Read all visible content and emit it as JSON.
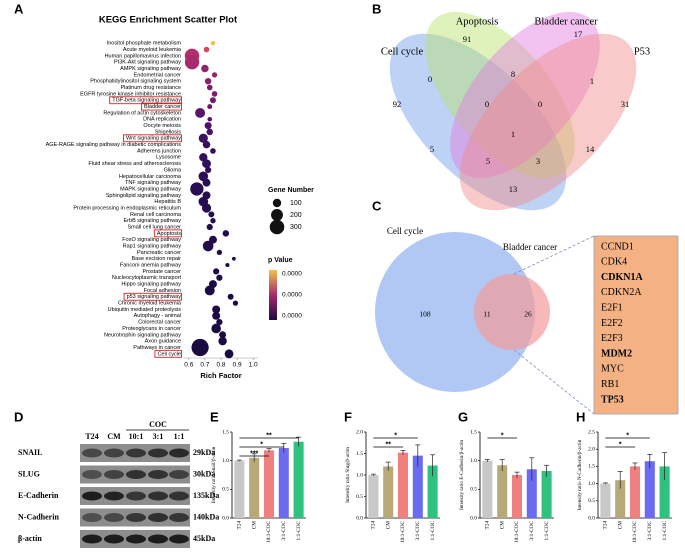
{
  "chart_data": [
    {
      "type": "scatter",
      "panel": "A",
      "title": "KEGG Enrichment Scatter Plot",
      "x_label": "Rich Factor",
      "categories": [
        "Inositol phosphate metabolism",
        "Acute myeloid leukemia",
        "Human papillomavirus infection",
        "PI3K-Akt signaling pathway",
        "AMPK signaling pathway",
        "Endometrial cancer",
        "Phosphatidylinositol signaling system",
        "Platinum drug resistance",
        "EGFR tyrosine kinase inhibitor resistance",
        "TGF-beta signaling pathway",
        "Bladder cancer",
        "Regulation of actin cytoskeleton",
        "DNA replication",
        "Oocyte meiosis",
        "Shigellosis",
        "Wnt signaling pathway",
        "AGE-RAGE signaling pathway in diabetic complications",
        "Adherens junction",
        "Lysosome",
        "Fluid shear stress and atherosclerosis",
        "Glioma",
        "Hepatocellular carcinoma",
        "TNF signaling pathway",
        "MAPK signaling pathway",
        "Sphingolipid signaling pathway",
        "Hepatitis B",
        "Protein processing in endoplasmic reticulum",
        "Renal cell carcinoma",
        "ErbB signaling pathway",
        "Small cell lung cancer",
        "Apoptosis",
        "FoxO signaling pathway",
        "Rap1 signaling pathway",
        "Pancreatic cancer",
        "Base excision repair",
        "Fanconi anemia pathway",
        "Prostate cancer",
        "Nucleocytoplasmic transport",
        "Hippo signaling pathway",
        "Focal adhesion",
        "p53 signaling pathway",
        "Chronic myeloid leukemia",
        "Ubiquitin mediated proteolysis",
        "Autophagy - animal",
        "Colorectal cancer",
        "Proteoglycans in cancer",
        "Neurotrophin signaling pathway",
        "Axon guidance",
        "Pathways in cancer",
        "Cell cycle"
      ],
      "values": [
        0.75,
        0.71,
        0.62,
        0.62,
        0.7,
        0.76,
        0.72,
        0.73,
        0.76,
        0.75,
        0.73,
        0.67,
        0.73,
        0.72,
        0.73,
        0.69,
        0.71,
        0.75,
        0.69,
        0.71,
        0.72,
        0.69,
        0.71,
        0.65,
        0.71,
        0.69,
        0.71,
        0.74,
        0.75,
        0.73,
        0.83,
        0.75,
        0.72,
        0.79,
        0.88,
        0.84,
        0.77,
        0.79,
        0.75,
        0.73,
        0.86,
        0.89,
        0.77,
        0.77,
        0.79,
        0.77,
        0.81,
        0.81,
        0.67,
        0.85
      ],
      "sizes": [
        30,
        45,
        300,
        290,
        80,
        40,
        60,
        45,
        45,
        50,
        35,
        140,
        30,
        70,
        60,
        120,
        80,
        45,
        100,
        110,
        55,
        130,
        90,
        250,
        90,
        130,
        120,
        50,
        40,
        55,
        60,
        90,
        160,
        40,
        20,
        25,
        55,
        55,
        90,
        140,
        50,
        40,
        90,
        90,
        55,
        130,
        70,
        100,
        420,
        110
      ],
      "colors": [
        "#f2c14e",
        "#d9455a",
        "#b3306a",
        "#a62b6c",
        "#8c2470",
        "#932670",
        "#8a2470",
        "#7a1f6e",
        "#7a1f6e",
        "#6d1b6c",
        "#6a1a6c",
        "#5a1668",
        "#5a1668",
        "#4e1464",
        "#4a1362",
        "#3e1160",
        "#3a105e",
        "#36105c",
        "#33105a",
        "#30105a",
        "#2e0f58",
        "#2c0f56",
        "#2a0e54",
        "#280e52",
        "#270e52",
        "#260d50",
        "#250d50",
        "#240d4e",
        "#240d4e",
        "#230c4c",
        "#230c4c",
        "#220c4c",
        "#220c4a",
        "#210c4a",
        "#210c4a",
        "#200b48",
        "#200b48",
        "#1f0b48",
        "#1f0b46",
        "#1e0b46",
        "#1e0b46",
        "#1e0b46",
        "#1d0a44",
        "#1d0a44",
        "#1d0a44",
        "#1c0a44",
        "#1c0a42",
        "#1c0a42",
        "#1b0a42",
        "#1b0a42"
      ],
      "highlighted": [
        9,
        10,
        15,
        30,
        40,
        49
      ],
      "xlim": [
        0.57,
        1.03
      ],
      "xticks": [
        0.6,
        0.7,
        0.8,
        0.9,
        {
          "value": 1.0,
          "label": "1.0"
        }
      ],
      "size_legend": {
        "title": "Gene Number",
        "values": [
          100,
          200,
          300
        ]
      },
      "color_legend": {
        "title": "p Value",
        "labels": [
          "0.0000",
          "0.0000",
          "0.0000"
        ],
        "colors": [
          "#f2c14e",
          "#a62b6c",
          "#1b0a42"
        ]
      }
    },
    {
      "type": "bar",
      "panel": "E",
      "y_label": "Intensity ratio Snail/β-actin",
      "categories": [
        "T24",
        "CM",
        "10:1-COC",
        "3:1-COC",
        "1:1-COC"
      ],
      "values": [
        1.0,
        1.05,
        1.18,
        1.22,
        1.33
      ],
      "errors": [
        0.01,
        0.07,
        0.03,
        0.08,
        0.08
      ],
      "colors": [
        "#c8c8c8",
        "#b8aa78",
        "#f08080",
        "#6b6bf2",
        "#2ec27e"
      ],
      "ylim": [
        0,
        1.5
      ],
      "yticks": [
        {
          "value": 0,
          "label": "0.0"
        },
        0.5,
        {
          "value": 1.0,
          "label": "1.0"
        },
        1.5
      ],
      "significance": [
        {
          "from": 0,
          "to": 4,
          "label": "**"
        },
        {
          "from": 0,
          "to": 3,
          "label": "*"
        },
        {
          "from": 0,
          "to": 2,
          "label": "***"
        }
      ]
    },
    {
      "type": "bar",
      "panel": "F",
      "y_label": "Intensity ratio Slug/β-actin",
      "categories": [
        "T24",
        "CM",
        "10:1-COC",
        "3:1-COC",
        "1:1-COC"
      ],
      "values": [
        1.0,
        1.2,
        1.52,
        1.45,
        1.22
      ],
      "errors": [
        0.02,
        0.1,
        0.05,
        0.25,
        0.25
      ],
      "colors": [
        "#c8c8c8",
        "#b8aa78",
        "#f08080",
        "#6b6bf2",
        "#2ec27e"
      ],
      "ylim": [
        0,
        2.0
      ],
      "yticks": [
        {
          "value": 0,
          "label": "0.0"
        },
        0.5,
        {
          "value": 1.0,
          "label": "1.0"
        },
        1.5,
        {
          "value": 2.0,
          "label": "2.0"
        }
      ],
      "significance": [
        {
          "from": 0,
          "to": 3,
          "label": "*"
        },
        {
          "from": 0,
          "to": 2,
          "label": "**"
        }
      ]
    },
    {
      "type": "bar",
      "panel": "G",
      "y_label": "Intensity ratio E-Cadherin/β-actin",
      "categories": [
        "T24",
        "CM",
        "10:1-COC",
        "3:1-COC",
        "1:1-COC"
      ],
      "values": [
        1.0,
        0.92,
        0.75,
        0.85,
        0.82
      ],
      "errors": [
        0.02,
        0.1,
        0.05,
        0.2,
        0.1
      ],
      "colors": [
        "#c8c8c8",
        "#b8aa78",
        "#f08080",
        "#6b6bf2",
        "#2ec27e"
      ],
      "ylim": [
        0,
        1.5
      ],
      "yticks": [
        {
          "value": 0,
          "label": "0.0"
        },
        0.5,
        {
          "value": 1.0,
          "label": "1.0"
        },
        1.5
      ],
      "significance": [
        {
          "from": 0,
          "to": 2,
          "label": "*"
        }
      ]
    },
    {
      "type": "bar",
      "panel": "H",
      "y_label": "Intensity ratio N-Cadherin/β-actin",
      "categories": [
        "T24",
        "CM",
        "10:1-COC",
        "3:1-COC",
        "1:1-COC"
      ],
      "values": [
        1.0,
        1.1,
        1.5,
        1.65,
        1.5
      ],
      "errors": [
        0.02,
        0.25,
        0.1,
        0.2,
        0.4
      ],
      "colors": [
        "#c8c8c8",
        "#b8aa78",
        "#f08080",
        "#6b6bf2",
        "#2ec27e"
      ],
      "ylim": [
        0,
        2.5
      ],
      "yticks": [
        {
          "value": 0,
          "label": "0.0"
        },
        0.5,
        {
          "value": 1.0,
          "label": "1.0"
        },
        1.5,
        {
          "value": 2.0,
          "label": "2.0"
        },
        2.5
      ],
      "significance": [
        {
          "from": 0,
          "to": 3,
          "label": "*"
        },
        {
          "from": 0,
          "to": 2,
          "label": "*"
        }
      ]
    }
  ],
  "venn4": {
    "panel": "B",
    "sets": [
      "Cell cycle",
      "Apoptosis",
      "Bladder cancer",
      "P53"
    ],
    "regions": [
      91,
      17,
      0,
      8,
      1,
      92,
      0,
      0,
      31,
      1,
      5,
      14,
      5,
      3,
      13
    ]
  },
  "venn2": {
    "panel": "C",
    "sets": [
      "Cell cycle",
      "Bladder cancer"
    ],
    "regions": [
      108,
      11,
      26
    ],
    "genes": [
      "CCND1",
      "CDK4",
      "CDKN1A",
      "CDKN2A",
      "E2F1",
      "E2F2",
      "E2F3",
      "MDM2",
      "MYC",
      "RB1",
      "TP53"
    ],
    "bold": [
      2,
      7,
      10
    ]
  },
  "blot": {
    "panel": "D",
    "lanes": [
      "T24",
      "CM",
      "10:1",
      "3:1",
      "1:1"
    ],
    "group": "COC",
    "rows": [
      {
        "name": "SNAIL",
        "size": "29kDa"
      },
      {
        "name": "SLUG",
        "size": "30kDa"
      },
      {
        "name": "E-Cadherin",
        "size": "135kDa"
      },
      {
        "name": "N-Cadherin",
        "size": "140kDa"
      },
      {
        "name": "β-actin",
        "size": "45kDa"
      }
    ]
  }
}
